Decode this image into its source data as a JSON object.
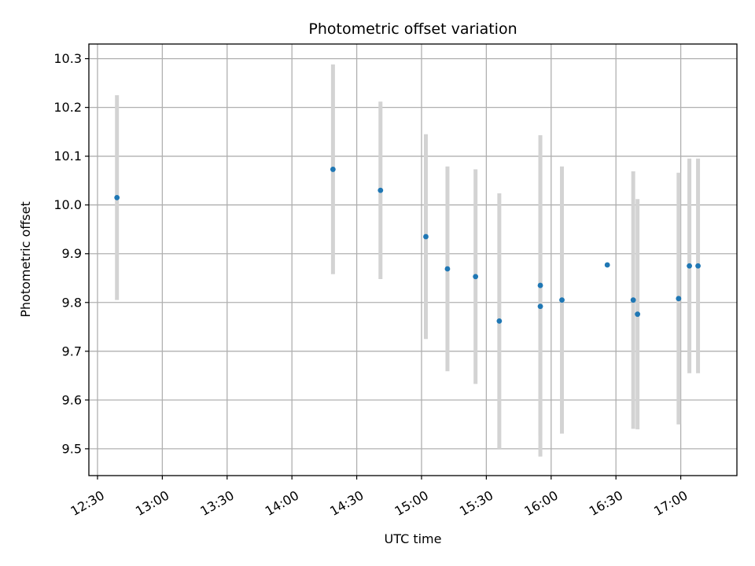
{
  "chart_data": {
    "type": "scatter",
    "title": "Photometric offset variation",
    "xlabel": "UTC time",
    "ylabel": "Photometric offset",
    "grid": true,
    "x_ticks": [
      "12:30",
      "13:00",
      "13:30",
      "14:00",
      "14:30",
      "15:00",
      "15:30",
      "16:00",
      "16:30",
      "17:00"
    ],
    "y_ticks": [
      "9.5",
      "9.6",
      "9.7",
      "9.8",
      "9.9",
      "10.0",
      "10.1",
      "10.2",
      "10.3"
    ],
    "xlim": [
      "12:26",
      "17:26"
    ],
    "ylim": [
      9.445,
      10.33
    ],
    "colors": {
      "points": "#1f77b4",
      "errorbars": "#d3d3d3",
      "grid": "#b0b0b0"
    },
    "series": [
      {
        "points": [
          {
            "x": "12:39",
            "y": 10.015,
            "err": 0.21
          },
          {
            "x": "14:19",
            "y": 10.073,
            "err": 0.215
          },
          {
            "x": "14:41",
            "y": 10.03,
            "err": 0.182
          },
          {
            "x": "15:02",
            "y": 9.935,
            "err": 0.21
          },
          {
            "x": "15:12",
            "y": 9.869,
            "err": 0.21
          },
          {
            "x": "15:25",
            "y": 9.853,
            "err": 0.22
          },
          {
            "x": "15:36",
            "y": 9.762,
            "err": 0.262
          },
          {
            "x": "15:55",
            "y": 9.835,
            "err": 0.308
          },
          {
            "x": "15:55",
            "y": 9.792,
            "err": 0.308
          },
          {
            "x": "16:05",
            "y": 9.805,
            "err": 0.274
          },
          {
            "x": "16:26",
            "y": 9.877,
            "err": 0
          },
          {
            "x": "16:38",
            "y": 9.805,
            "err": 0.264
          },
          {
            "x": "16:40",
            "y": 9.776,
            "err": 0.236
          },
          {
            "x": "16:59",
            "y": 9.808,
            "err": 0.258
          },
          {
            "x": "17:04",
            "y": 9.875,
            "err": 0.22
          },
          {
            "x": "17:08",
            "y": 9.875,
            "err": 0.22
          }
        ]
      }
    ]
  }
}
